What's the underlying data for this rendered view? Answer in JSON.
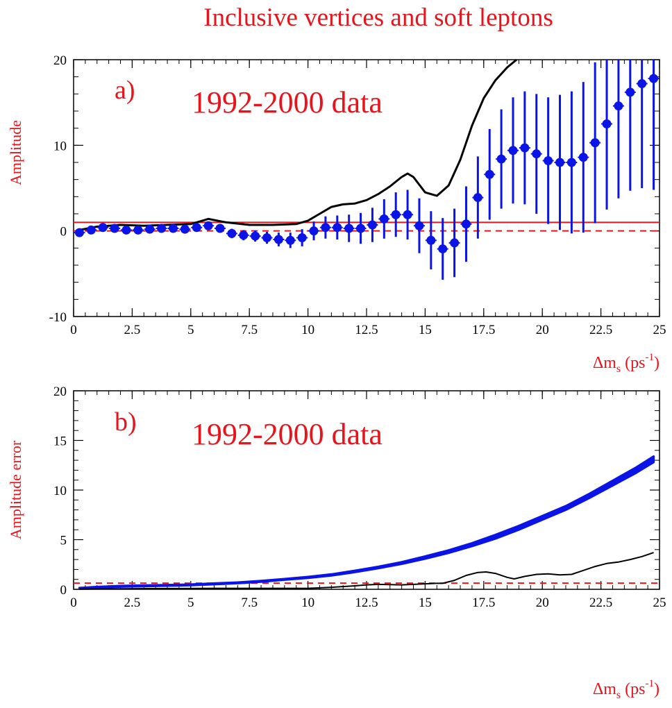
{
  "page_title": "Inclusive vertices and soft leptons",
  "colors": {
    "text_red": "#e8141b",
    "points_blue": "#0a14e6",
    "curve_black": "#000000",
    "ref_red": "#e8141b"
  },
  "chart_data": [
    {
      "type": "scatter",
      "panel_label": "a)",
      "subtitle": "1992-2000 data",
      "ylabel": "Amplitude",
      "xlabel_main": "Δm",
      "xlabel_sub": "s",
      "xlabel_unit_pre": " (ps",
      "xlabel_sup": "-1",
      "xlabel_unit_post": ")",
      "xlim": [
        0,
        25
      ],
      "ylim": [
        -10,
        20
      ],
      "xticks": [
        0,
        2.5,
        5,
        7.5,
        10,
        12.5,
        15,
        17.5,
        20,
        22.5,
        25
      ],
      "xtick_labels": [
        "0",
        "2.5",
        "5",
        "7.5",
        "10",
        "12.5",
        "15",
        "17.5",
        "20",
        "22.5",
        "25"
      ],
      "yticks": [
        -10,
        0,
        10,
        20
      ],
      "ytick_labels": [
        "-10",
        "0",
        "10",
        "20"
      ],
      "points": {
        "x": [
          0.25,
          0.75,
          1.25,
          1.75,
          2.25,
          2.75,
          3.25,
          3.75,
          4.25,
          4.75,
          5.25,
          5.75,
          6.25,
          6.75,
          7.25,
          7.75,
          8.25,
          8.75,
          9.25,
          9.75,
          10.25,
          10.75,
          11.25,
          11.75,
          12.25,
          12.75,
          13.25,
          13.75,
          14.25,
          14.75,
          15.25,
          15.75,
          16.25,
          16.75,
          17.25,
          17.75,
          18.25,
          18.75,
          19.25,
          19.75,
          20.25,
          20.75,
          21.25,
          21.75,
          22.25,
          22.75,
          23.25,
          23.75,
          24.25,
          24.75
        ],
        "y": [
          -0.2,
          0.1,
          0.4,
          0.3,
          0.1,
          0.1,
          0.2,
          0.3,
          0.3,
          0.2,
          0.4,
          0.6,
          0.3,
          -0.3,
          -0.5,
          -0.6,
          -0.8,
          -1.0,
          -1.1,
          -0.8,
          0.0,
          0.4,
          0.4,
          0.3,
          0.3,
          0.7,
          1.4,
          1.9,
          1.9,
          0.6,
          -1.1,
          -2.1,
          -1.4,
          0.8,
          3.9,
          6.6,
          8.4,
          9.4,
          9.7,
          9.0,
          8.2,
          8.0,
          8.0,
          8.6,
          10.3,
          12.5,
          14.6,
          16.2,
          17.2,
          17.8
        ],
        "err": [
          0.3,
          0.3,
          0.3,
          0.3,
          0.3,
          0.3,
          0.35,
          0.35,
          0.35,
          0.4,
          0.4,
          0.45,
          0.5,
          0.55,
          0.6,
          0.65,
          0.7,
          0.8,
          0.9,
          1.0,
          1.1,
          1.3,
          1.4,
          1.6,
          1.8,
          2.0,
          2.3,
          2.6,
          2.9,
          3.2,
          3.4,
          3.6,
          4.0,
          4.4,
          4.8,
          5.3,
          5.8,
          6.2,
          6.6,
          7.0,
          7.4,
          7.9,
          8.3,
          8.8,
          9.4,
          10.0,
          10.8,
          11.5,
          12.2,
          13.0
        ]
      },
      "curve": {
        "x": [
          0.25,
          1,
          2,
          3,
          4,
          5,
          5.75,
          6.5,
          7.5,
          8.5,
          9.5,
          10,
          10.5,
          11,
          11.5,
          12,
          12.5,
          13,
          13.5,
          14,
          14.25,
          14.5,
          15,
          15.5,
          16,
          16.5,
          17,
          17.5,
          18,
          18.5,
          18.9
        ],
        "y": [
          0.1,
          0.5,
          0.7,
          0.6,
          0.7,
          0.8,
          1.4,
          1.0,
          0.7,
          0.7,
          0.8,
          1.2,
          2.0,
          2.8,
          3.1,
          3.2,
          3.6,
          4.3,
          5.2,
          6.3,
          6.7,
          6.3,
          4.5,
          4.1,
          5.3,
          8.3,
          12.3,
          15.5,
          17.6,
          19.1,
          20.0
        ]
      },
      "ref_solid_y": 1,
      "ref_dashed_y": 0
    },
    {
      "type": "line",
      "panel_label": "b)",
      "subtitle": "1992-2000 data",
      "ylabel": "Amplitude error",
      "xlabel_main": "Δm",
      "xlabel_sub": "s",
      "xlabel_unit_pre": " (ps",
      "xlabel_sup": "-1",
      "xlabel_unit_post": ")",
      "xlim": [
        0,
        25
      ],
      "ylim": [
        0,
        20
      ],
      "xticks": [
        0,
        2.5,
        5,
        7.5,
        10,
        12.5,
        15,
        17.5,
        20,
        22.5,
        25
      ],
      "xtick_labels": [
        "0",
        "2.5",
        "5",
        "7.5",
        "10",
        "12.5",
        "15",
        "17.5",
        "20",
        "22.5",
        "25"
      ],
      "yticks": [
        0,
        5,
        10,
        15,
        20
      ],
      "ytick_labels": [
        "0",
        "5",
        "10",
        "15",
        "20"
      ],
      "band": {
        "x": [
          0.25,
          1,
          2,
          3,
          4,
          5,
          6,
          7,
          8,
          9,
          10,
          11,
          12,
          13,
          14,
          15,
          16,
          17,
          18,
          19,
          20,
          21,
          22,
          23,
          24,
          24.75
        ],
        "y": [
          0.1,
          0.2,
          0.3,
          0.35,
          0.4,
          0.45,
          0.55,
          0.65,
          0.8,
          1.0,
          1.2,
          1.45,
          1.8,
          2.2,
          2.65,
          3.2,
          3.8,
          4.5,
          5.3,
          6.2,
          7.2,
          8.2,
          9.4,
          10.7,
          12.0,
          13.1
        ],
        "halfwidth": [
          0.05,
          0.05,
          0.05,
          0.05,
          0.05,
          0.05,
          0.05,
          0.05,
          0.05,
          0.05,
          0.06,
          0.07,
          0.08,
          0.09,
          0.1,
          0.12,
          0.14,
          0.16,
          0.2,
          0.2,
          0.2,
          0.2,
          0.22,
          0.25,
          0.28,
          0.3
        ]
      },
      "curve": {
        "x": [
          0.25,
          2,
          4,
          6,
          8,
          10,
          10.5,
          11,
          12,
          12.5,
          13,
          14,
          14.5,
          15,
          15.5,
          15.75,
          16.25,
          16.75,
          17.25,
          17.6,
          18,
          18.5,
          18.8,
          19.25,
          19.75,
          20.25,
          20.75,
          21.25,
          21.75,
          22.25,
          22.75,
          23.25,
          23.75,
          24.25,
          24.75
        ],
        "y": [
          0.02,
          0.05,
          0.08,
          0.1,
          0.1,
          0.1,
          0.15,
          0.2,
          0.35,
          0.45,
          0.5,
          0.45,
          0.5,
          0.55,
          0.6,
          0.6,
          0.9,
          1.4,
          1.7,
          1.75,
          1.6,
          1.2,
          1.05,
          1.3,
          1.5,
          1.55,
          1.45,
          1.5,
          1.9,
          2.3,
          2.6,
          2.75,
          3.0,
          3.3,
          3.7
        ]
      },
      "ref_dashed_y": 0.62
    }
  ]
}
